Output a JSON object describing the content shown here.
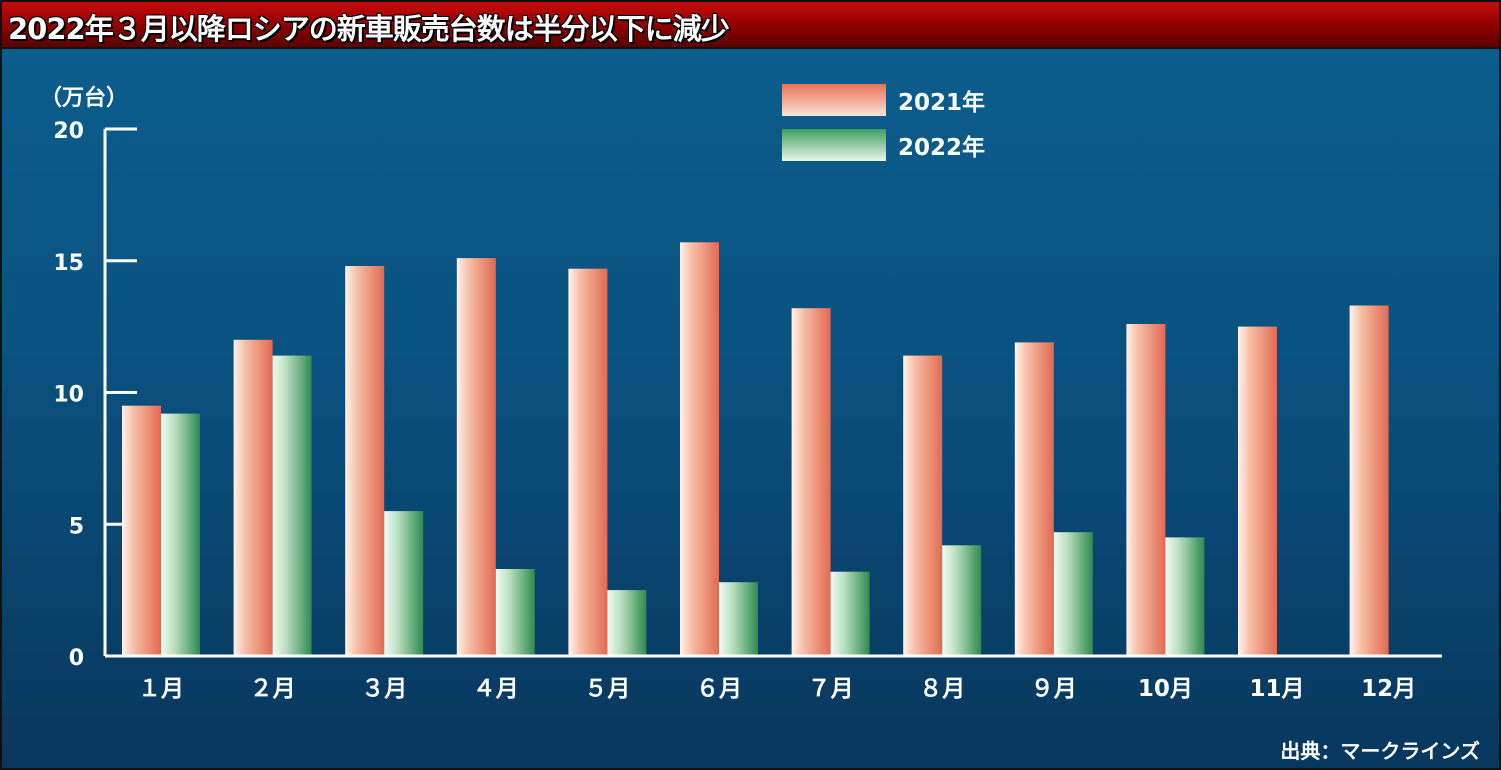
{
  "title": "2022年３月以降ロシアの新車販売台数は半分以下に減少",
  "source": "出典：マークラインズ",
  "chart_data": {
    "type": "bar",
    "unit_label": "（万台）",
    "categories": [
      "１月",
      "２月",
      "３月",
      "４月",
      "５月",
      "６月",
      "７月",
      "８月",
      "９月",
      "10月",
      "11月",
      "12月"
    ],
    "series": [
      {
        "name": "2021年",
        "values": [
          9.5,
          12.0,
          14.8,
          15.1,
          14.7,
          15.7,
          13.2,
          11.4,
          11.9,
          12.6,
          12.5,
          13.3
        ],
        "color": "#e8765c"
      },
      {
        "name": "2022年",
        "values": [
          9.2,
          11.4,
          5.5,
          3.3,
          2.5,
          2.8,
          3.2,
          4.2,
          4.7,
          4.5,
          null,
          null
        ],
        "color": "#3c9a5c"
      }
    ],
    "y_ticks": [
      "0",
      "5",
      "10",
      "15",
      "20"
    ],
    "ylim": [
      0,
      20
    ],
    "grid": false,
    "legend_position": "top-center"
  }
}
